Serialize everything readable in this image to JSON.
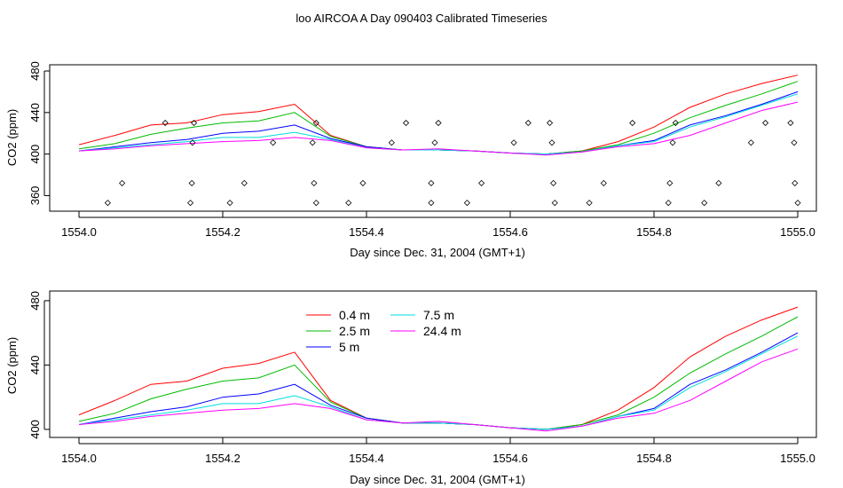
{
  "page_title": "loo AIRCOA A  Day 090403  Calibrated Timeseries",
  "chart_data": [
    {
      "type": "line+scatter",
      "ylabel": "CO2 (ppm)",
      "xlabel": "Day since Dec. 31, 2004 (GMT+1)",
      "xlim": [
        1554.0,
        1555.0
      ],
      "ylim": [
        345,
        486
      ],
      "xticks": [
        1554.0,
        1554.2,
        1554.4,
        1554.6,
        1554.8,
        1555.0
      ],
      "xtick_labels": [
        "1554.0",
        "1554.2",
        "1554.4",
        "1554.6",
        "1554.8",
        "1555.0"
      ],
      "yticks": [
        360,
        400,
        440,
        480
      ],
      "ytick_labels": [
        "360",
        "400",
        "440",
        "480"
      ],
      "diamond_points": [
        [
          1554.04,
          353
        ],
        [
          1554.06,
          372
        ],
        [
          1554.12,
          430
        ],
        [
          1554.155,
          353
        ],
        [
          1554.157,
          372
        ],
        [
          1554.158,
          411
        ],
        [
          1554.16,
          430
        ],
        [
          1554.21,
          353
        ],
        [
          1554.23,
          372
        ],
        [
          1554.27,
          411
        ],
        [
          1554.33,
          430
        ],
        [
          1554.325,
          411
        ],
        [
          1554.327,
          372
        ],
        [
          1554.33,
          353
        ],
        [
          1554.375,
          353
        ],
        [
          1554.395,
          372
        ],
        [
          1554.435,
          411
        ],
        [
          1554.455,
          430
        ],
        [
          1554.49,
          372
        ],
        [
          1554.49,
          353
        ],
        [
          1554.495,
          411
        ],
        [
          1554.5,
          430
        ],
        [
          1554.54,
          353
        ],
        [
          1554.56,
          372
        ],
        [
          1554.605,
          411
        ],
        [
          1554.625,
          430
        ],
        [
          1554.655,
          430
        ],
        [
          1554.658,
          411
        ],
        [
          1554.66,
          372
        ],
        [
          1554.662,
          353
        ],
        [
          1554.71,
          353
        ],
        [
          1554.73,
          372
        ],
        [
          1554.77,
          430
        ],
        [
          1554.82,
          353
        ],
        [
          1554.822,
          372
        ],
        [
          1554.826,
          411
        ],
        [
          1554.83,
          430
        ],
        [
          1554.87,
          353
        ],
        [
          1554.89,
          372
        ],
        [
          1554.935,
          411
        ],
        [
          1554.955,
          430
        ],
        [
          1554.99,
          430
        ],
        [
          1554.995,
          411
        ],
        [
          1554.996,
          372
        ],
        [
          1555.0,
          353
        ]
      ]
    },
    {
      "type": "line",
      "ylabel": "CO2 (ppm)",
      "xlabel": "Day since Dec. 31, 2004 (GMT+1)",
      "xlim": [
        1553.985,
        1555.0
      ],
      "ylim": [
        395,
        486
      ],
      "xticks": [
        1554.0,
        1554.2,
        1554.4,
        1554.6,
        1554.8,
        1555.0
      ],
      "xtick_labels": [
        "1554.0",
        "1554.2",
        "1554.4",
        "1554.6",
        "1554.8",
        "1555.0"
      ],
      "yticks": [
        400,
        440,
        480
      ],
      "ytick_labels": [
        "400",
        "440",
        "480"
      ],
      "legend": [
        {
          "label": "0.4 m",
          "color": "#ff0000"
        },
        {
          "label": "2.5 m",
          "color": "#00bb00"
        },
        {
          "label": "5 m",
          "color": "#0000ff"
        },
        {
          "label": "7.5 m",
          "color": "#00dddd"
        },
        {
          "label": "24.4 m",
          "color": "#ff00ff"
        }
      ],
      "x": [
        1554.0,
        1554.05,
        1554.1,
        1554.15,
        1554.2,
        1554.25,
        1554.3,
        1554.35,
        1554.4,
        1554.45,
        1554.5,
        1554.55,
        1554.6,
        1554.65,
        1554.7,
        1554.75,
        1554.8,
        1554.85,
        1554.9,
        1554.95,
        1555.0
      ],
      "series": [
        {
          "name": "0.4 m",
          "color": "#ff0000",
          "values": [
            409,
            418,
            428,
            430,
            438,
            441,
            448,
            418,
            407,
            404,
            404,
            403,
            401,
            400,
            403,
            412,
            426,
            445,
            458,
            468,
            476
          ]
        },
        {
          "name": "2.5 m",
          "color": "#00bb00",
          "values": [
            405,
            410,
            419,
            425,
            430,
            432,
            440,
            417,
            407,
            404,
            404,
            403,
            401,
            400,
            403,
            409,
            420,
            435,
            447,
            458,
            470
          ]
        },
        {
          "name": "5 m",
          "color": "#0000ff",
          "values": [
            403,
            407,
            411,
            414,
            420,
            422,
            428,
            415,
            407,
            404,
            404,
            403,
            401,
            400,
            402,
            408,
            413,
            428,
            437,
            448,
            460
          ]
        },
        {
          "name": "7.5 m",
          "color": "#00dddd",
          "values": [
            403,
            406,
            409,
            412,
            416,
            416,
            421,
            414,
            406,
            404,
            404,
            403,
            401,
            400,
            402,
            408,
            412,
            426,
            436,
            447,
            458
          ]
        },
        {
          "name": "24.4 m",
          "color": "#ff00ff",
          "values": [
            403,
            405,
            408,
            410,
            412,
            413,
            416,
            413,
            406,
            404,
            405,
            403,
            401,
            399,
            402,
            407,
            410,
            418,
            430,
            442,
            450
          ]
        }
      ]
    }
  ]
}
